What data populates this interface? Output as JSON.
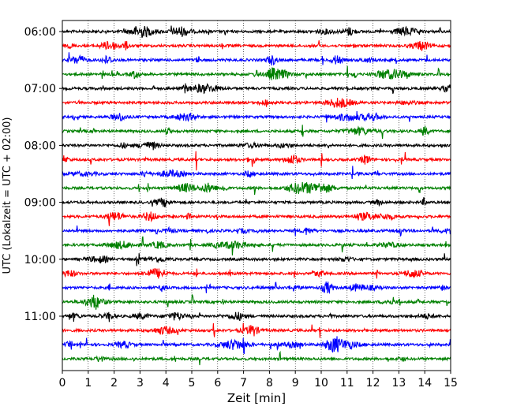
{
  "chart_data": {
    "type": "line",
    "title": "",
    "xlabel": "Zeit  [min]",
    "ylabel": "UTC (Lokalzeit = UTC + 02:00)",
    "xlim": [
      0,
      15
    ],
    "x_ticks": [
      "0",
      "1",
      "2",
      "3",
      "4",
      "5",
      "6",
      "7",
      "8",
      "9",
      "10",
      "11",
      "12",
      "13",
      "14",
      "15"
    ],
    "y_tick_labels": [
      "06:00",
      "07:00",
      "08:00",
      "09:00",
      "10:00",
      "11:00"
    ],
    "grid": "vertical dotted",
    "legend": "none",
    "trace_interval_min": 15,
    "trace_colors": [
      "#000000",
      "#ff0000",
      "#0000ff",
      "#008000"
    ],
    "traces": [
      {
        "time": "06:00",
        "color": "#000000"
      },
      {
        "time": "06:15",
        "color": "#ff0000"
      },
      {
        "time": "06:30",
        "color": "#0000ff"
      },
      {
        "time": "06:45",
        "color": "#008000"
      },
      {
        "time": "07:00",
        "color": "#000000"
      },
      {
        "time": "07:15",
        "color": "#ff0000"
      },
      {
        "time": "07:30",
        "color": "#0000ff"
      },
      {
        "time": "07:45",
        "color": "#008000"
      },
      {
        "time": "08:00",
        "color": "#000000"
      },
      {
        "time": "08:15",
        "color": "#ff0000"
      },
      {
        "time": "08:30",
        "color": "#0000ff"
      },
      {
        "time": "08:45",
        "color": "#008000"
      },
      {
        "time": "09:00",
        "color": "#000000"
      },
      {
        "time": "09:15",
        "color": "#ff0000"
      },
      {
        "time": "09:30",
        "color": "#0000ff"
      },
      {
        "time": "09:45",
        "color": "#008000"
      },
      {
        "time": "10:00",
        "color": "#000000"
      },
      {
        "time": "10:15",
        "color": "#ff0000"
      },
      {
        "time": "10:30",
        "color": "#0000ff"
      },
      {
        "time": "10:45",
        "color": "#008000"
      },
      {
        "time": "11:00",
        "color": "#000000"
      },
      {
        "time": "11:15",
        "color": "#ff0000"
      },
      {
        "time": "11:30",
        "color": "#0000ff"
      },
      {
        "time": "11:45",
        "color": "#008000"
      }
    ]
  }
}
